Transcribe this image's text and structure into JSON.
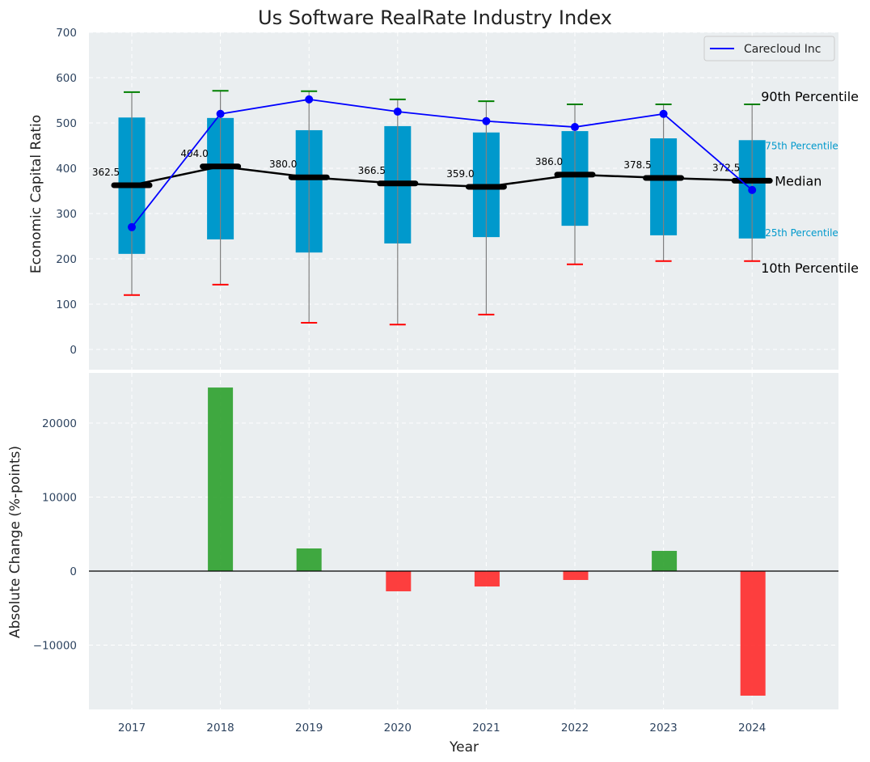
{
  "chart_data": [
    {
      "type": "box",
      "title": "Us Software RealRate Industry Index",
      "xlabel": "",
      "ylabel": "Economic Capital Ratio",
      "ylim": [
        -50,
        700
      ],
      "yticks": [
        0,
        100,
        200,
        300,
        400,
        500,
        600,
        700
      ],
      "grid": true,
      "categories": [
        "2017",
        "2018",
        "2019",
        "2020",
        "2021",
        "2022",
        "2023",
        "2024"
      ],
      "p90": [
        568,
        571,
        570,
        552,
        548,
        541,
        541,
        541
      ],
      "p75": [
        512,
        511,
        484,
        493,
        479,
        482,
        466,
        462
      ],
      "median": [
        362.5,
        404.0,
        380.0,
        366.5,
        359.0,
        386.0,
        378.5,
        372.5
      ],
      "median_labels": [
        "362.5",
        "404.0",
        "380.0",
        "366.5",
        "359.0",
        "386.0",
        "378.5",
        "372.5"
      ],
      "p25": [
        211,
        243,
        214,
        234,
        248,
        273,
        252,
        245
      ],
      "p10": [
        120,
        143,
        59,
        55,
        77,
        188,
        195,
        195
      ],
      "series": [
        {
          "name": "Carecloud Inc",
          "values": [
            270,
            520,
            552,
            525,
            504,
            491,
            520,
            352
          ],
          "color": "#0000ff"
        }
      ],
      "legend": {
        "position": "top-right",
        "entries": [
          "Carecloud Inc"
        ]
      },
      "annotations": {
        "p90": "90th Percentile",
        "p75": "75th Percentile",
        "median": "Median",
        "p25": "25th Percentile",
        "p10": "10th Percentile"
      },
      "colors": {
        "box": "#0099cc",
        "whisker": "#808080",
        "p90_cap": "#008000",
        "p10_cap": "#ff0000",
        "median": "#000000",
        "pct_label": "#0099cc",
        "background": "#eaeef0"
      }
    },
    {
      "type": "bar",
      "title": "",
      "xlabel": "Year",
      "ylabel": "Absolute Change (%-points)",
      "ylim": [
        -18500,
        25500
      ],
      "yticks": [
        -10000,
        0,
        10000,
        20000
      ],
      "ytick_labels": [
        "−10000",
        "0",
        "10000",
        "20000"
      ],
      "grid": true,
      "categories": [
        "2017",
        "2018",
        "2019",
        "2020",
        "2021",
        "2022",
        "2023",
        "2024"
      ],
      "values": [
        0,
        24800,
        3060,
        -2730,
        -2080,
        -1200,
        2730,
        -16830
      ],
      "colors": {
        "positive": "#2ca02c",
        "negative": "#ff2a2a",
        "zero_line": "#000000"
      }
    }
  ]
}
